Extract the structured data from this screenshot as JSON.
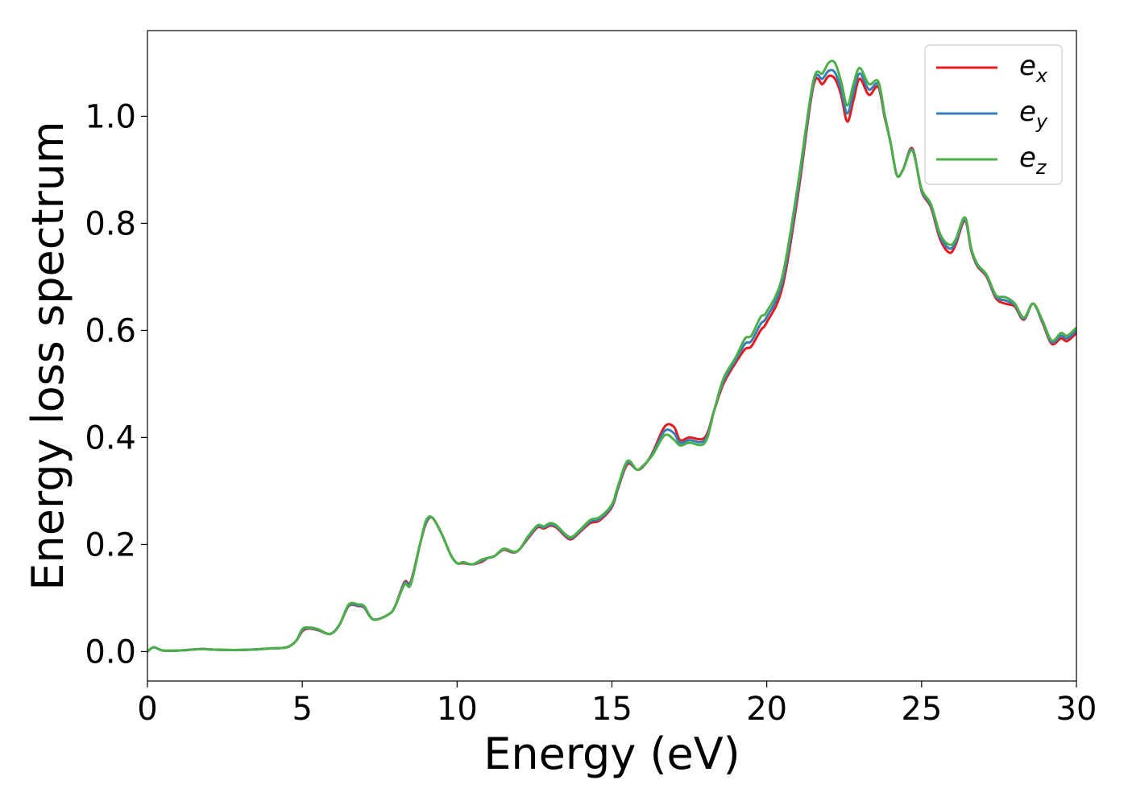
{
  "chart_data": {
    "type": "line",
    "title": "",
    "xlabel": "Energy (eV)",
    "ylabel": "Energy loss spectrum",
    "xlim": [
      0,
      30
    ],
    "ylim": [
      -0.055,
      1.16
    ],
    "xticks": [
      0,
      5,
      10,
      15,
      20,
      25,
      30
    ],
    "xtick_labels": [
      "0",
      "5",
      "10",
      "15",
      "20",
      "25",
      "30"
    ],
    "yticks": [
      0.0,
      0.2,
      0.4,
      0.6,
      0.8,
      1.0
    ],
    "ytick_labels": [
      "0.0",
      "0.2",
      "0.4",
      "0.6",
      "0.8",
      "1.0"
    ],
    "grid": false,
    "legend_position": "top-right",
    "colors": {
      "e_x": "#e41a1c",
      "e_y": "#377eb8",
      "e_z": "#4daf4a"
    },
    "x": [
      0,
      0.2,
      0.5,
      1,
      1.5,
      1.8,
      2,
      2.5,
      3,
      3.5,
      4,
      4.5,
      4.8,
      5.0,
      5.2,
      5.5,
      5.9,
      6.2,
      6.5,
      6.8,
      7.0,
      7.3,
      7.8,
      8.0,
      8.3,
      8.5,
      8.8,
      9.0,
      9.2,
      9.5,
      9.8,
      10.0,
      10.2,
      10.5,
      10.8,
      11.0,
      11.2,
      11.5,
      11.8,
      12.0,
      12.3,
      12.6,
      12.8,
      13.0,
      13.2,
      13.5,
      13.7,
      14.0,
      14.3,
      14.6,
      15.0,
      15.2,
      15.5,
      15.8,
      16.0,
      16.3,
      16.7,
      17.0,
      17.2,
      17.5,
      18.0,
      18.3,
      18.6,
      19.0,
      19.3,
      19.5,
      19.8,
      20.0,
      20.5,
      21.0,
      21.5,
      21.8,
      22.0,
      22.2,
      22.4,
      22.6,
      22.8,
      23.0,
      23.3,
      23.6,
      23.8,
      24.0,
      24.2,
      24.4,
      24.7,
      25.0,
      25.3,
      25.6,
      25.9,
      26.1,
      26.4,
      26.6,
      26.8,
      27.1,
      27.4,
      27.7,
      28.0,
      28.3,
      28.6,
      28.9,
      29.2,
      29.5,
      29.7,
      30.0
    ],
    "series": [
      {
        "name": "e_x",
        "values": [
          0.0,
          0.008,
          0.002,
          0.002,
          0.004,
          0.005,
          0.004,
          0.003,
          0.003,
          0.004,
          0.006,
          0.008,
          0.02,
          0.038,
          0.043,
          0.04,
          0.033,
          0.05,
          0.085,
          0.085,
          0.082,
          0.06,
          0.07,
          0.085,
          0.13,
          0.13,
          0.2,
          0.24,
          0.25,
          0.22,
          0.18,
          0.165,
          0.165,
          0.163,
          0.168,
          0.175,
          0.178,
          0.19,
          0.185,
          0.19,
          0.212,
          0.232,
          0.23,
          0.235,
          0.232,
          0.215,
          0.21,
          0.225,
          0.24,
          0.245,
          0.27,
          0.305,
          0.35,
          0.34,
          0.345,
          0.37,
          0.42,
          0.42,
          0.395,
          0.4,
          0.4,
          0.45,
          0.5,
          0.54,
          0.565,
          0.57,
          0.6,
          0.615,
          0.68,
          0.85,
          1.055,
          1.06,
          1.075,
          1.07,
          1.04,
          0.99,
          1.03,
          1.07,
          1.04,
          1.055,
          1.0,
          0.95,
          0.89,
          0.9,
          0.94,
          0.86,
          0.83,
          0.77,
          0.745,
          0.76,
          0.805,
          0.75,
          0.72,
          0.7,
          0.66,
          0.65,
          0.645,
          0.62,
          0.65,
          0.615,
          0.575,
          0.585,
          0.58,
          0.595
        ]
      },
      {
        "name": "e_y",
        "values": [
          0.0,
          0.008,
          0.002,
          0.002,
          0.004,
          0.005,
          0.004,
          0.003,
          0.003,
          0.004,
          0.006,
          0.008,
          0.02,
          0.04,
          0.044,
          0.041,
          0.033,
          0.05,
          0.086,
          0.086,
          0.083,
          0.06,
          0.07,
          0.085,
          0.128,
          0.128,
          0.2,
          0.242,
          0.25,
          0.22,
          0.18,
          0.165,
          0.166,
          0.163,
          0.17,
          0.175,
          0.178,
          0.191,
          0.186,
          0.19,
          0.214,
          0.234,
          0.232,
          0.237,
          0.234,
          0.217,
          0.212,
          0.227,
          0.243,
          0.248,
          0.272,
          0.307,
          0.353,
          0.34,
          0.346,
          0.368,
          0.412,
          0.408,
          0.39,
          0.395,
          0.395,
          0.45,
          0.505,
          0.545,
          0.575,
          0.58,
          0.612,
          0.625,
          0.69,
          0.86,
          1.06,
          1.07,
          1.085,
          1.082,
          1.05,
          1.005,
          1.045,
          1.08,
          1.05,
          1.06,
          1.003,
          0.95,
          0.89,
          0.9,
          0.938,
          0.862,
          0.833,
          0.775,
          0.753,
          0.765,
          0.808,
          0.752,
          0.722,
          0.702,
          0.663,
          0.656,
          0.648,
          0.622,
          0.65,
          0.617,
          0.578,
          0.59,
          0.585,
          0.6
        ]
      },
      {
        "name": "e_z",
        "values": [
          0.0,
          0.008,
          0.002,
          0.002,
          0.004,
          0.005,
          0.004,
          0.003,
          0.003,
          0.004,
          0.006,
          0.008,
          0.02,
          0.042,
          0.045,
          0.042,
          0.033,
          0.05,
          0.088,
          0.088,
          0.085,
          0.06,
          0.07,
          0.085,
          0.125,
          0.125,
          0.2,
          0.245,
          0.25,
          0.22,
          0.18,
          0.165,
          0.167,
          0.163,
          0.172,
          0.175,
          0.178,
          0.192,
          0.187,
          0.19,
          0.216,
          0.236,
          0.234,
          0.24,
          0.236,
          0.219,
          0.214,
          0.229,
          0.246,
          0.251,
          0.275,
          0.31,
          0.356,
          0.34,
          0.347,
          0.366,
          0.404,
          0.396,
          0.385,
          0.39,
          0.39,
          0.45,
          0.51,
          0.55,
          0.585,
          0.59,
          0.625,
          0.635,
          0.7,
          0.87,
          1.065,
          1.08,
          1.1,
          1.1,
          1.065,
          1.02,
          1.06,
          1.09,
          1.06,
          1.065,
          1.006,
          0.95,
          0.89,
          0.9,
          0.936,
          0.864,
          0.836,
          0.78,
          0.76,
          0.77,
          0.811,
          0.754,
          0.724,
          0.704,
          0.666,
          0.662,
          0.651,
          0.624,
          0.65,
          0.619,
          0.581,
          0.595,
          0.59,
          0.605
        ]
      }
    ],
    "legend": [
      {
        "key": "e_x",
        "base": "e",
        "sub": "x"
      },
      {
        "key": "e_y",
        "base": "e",
        "sub": "y"
      },
      {
        "key": "e_z",
        "base": "e",
        "sub": "z"
      }
    ]
  }
}
